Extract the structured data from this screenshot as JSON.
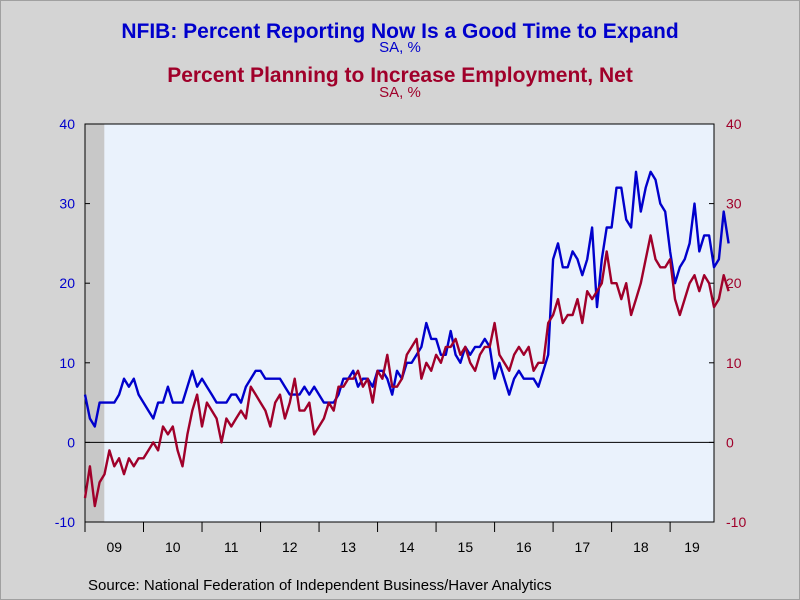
{
  "source": "Source:  National Federation of Independent Business/Haver Analytics",
  "colors": {
    "blue": "#0000cc",
    "red": "#a0002a",
    "plot_bg": "#eaf2fc",
    "recession": "#c8c8c8"
  },
  "chart_data": {
    "type": "line",
    "title": "NFIB: Percent Reporting Now Is a Good Time to Expand",
    "title_units": "SA, %",
    "subtitle": "Percent Planning to Increase Employment, Net",
    "subtitle_units": "SA, %",
    "x_range": [
      2009.0,
      2019.75
    ],
    "x_tick_labels": [
      "09",
      "10",
      "11",
      "12",
      "13",
      "14",
      "15",
      "16",
      "17",
      "18",
      "19"
    ],
    "y_left_range": [
      -10,
      40
    ],
    "y_right_range": [
      -10,
      40
    ],
    "y_left_ticks": [
      "40",
      "30",
      "20",
      "10",
      "0",
      "-10"
    ],
    "y_right_ticks": [
      "40",
      "30",
      "20",
      "10",
      "0",
      "-10"
    ],
    "recession_shading": [
      2009.0,
      2009.33
    ],
    "zero_line": true,
    "grid": false,
    "start": 2009.0,
    "step": 0.08333,
    "series": [
      {
        "name": "NFIB: Percent Reporting Now Is a Good Time to Expand",
        "axis": "left",
        "color": "#0000cc",
        "values": [
          6,
          3,
          2,
          5,
          5,
          5,
          5,
          6,
          8,
          7,
          8,
          6,
          5,
          4,
          3,
          5,
          5,
          7,
          5,
          5,
          5,
          7,
          9,
          7,
          8,
          7,
          6,
          5,
          5,
          5,
          6,
          6,
          5,
          7,
          8,
          9,
          9,
          8,
          8,
          8,
          8,
          7,
          6,
          6,
          6,
          7,
          6,
          7,
          6,
          5,
          5,
          5,
          6,
          8,
          8,
          9,
          7,
          8,
          8,
          7,
          9,
          9,
          8,
          6,
          9,
          8,
          10,
          10,
          11,
          12,
          15,
          13,
          13,
          11,
          11,
          14,
          11,
          10,
          12,
          11,
          12,
          12,
          13,
          12,
          8,
          10,
          8,
          6,
          8,
          9,
          8,
          8,
          8,
          7,
          9,
          11,
          23,
          25,
          22,
          22,
          24,
          23,
          21,
          23,
          27,
          17,
          23,
          27,
          27,
          32,
          32,
          28,
          27,
          34,
          29,
          32,
          34,
          33,
          30,
          29,
          24,
          20,
          22,
          23,
          25,
          30,
          24,
          26,
          26,
          22,
          23,
          29,
          25
        ]
      },
      {
        "name": "Percent Planning to Increase Employment, Net",
        "axis": "right",
        "color": "#a0002a",
        "values": [
          -7,
          -3,
          -8,
          -5,
          -4,
          -1,
          -3,
          -2,
          -4,
          -2,
          -3,
          -2,
          -2,
          -1,
          0,
          -1,
          2,
          1,
          2,
          -1,
          -3,
          1,
          4,
          6,
          2,
          5,
          4,
          3,
          0,
          3,
          2,
          3,
          4,
          3,
          7,
          6,
          5,
          4,
          2,
          5,
          6,
          3,
          5,
          8,
          4,
          4,
          5,
          1,
          2,
          3,
          5,
          4,
          7,
          7,
          8,
          8,
          9,
          7,
          8,
          5,
          9,
          8,
          11,
          7,
          7,
          8,
          11,
          12,
          13,
          8,
          10,
          9,
          11,
          10,
          12,
          12,
          13,
          11,
          12,
          10,
          9,
          11,
          12,
          12,
          15,
          11,
          10,
          9,
          11,
          12,
          11,
          12,
          9,
          10,
          10,
          15,
          16,
          18,
          15,
          16,
          16,
          18,
          15,
          19,
          18,
          19,
          20,
          24,
          20,
          20,
          18,
          20,
          16,
          18,
          20,
          23,
          26,
          23,
          22,
          22,
          23,
          18,
          16,
          18,
          20,
          21,
          19,
          21,
          20,
          17,
          18,
          21,
          19
        ]
      }
    ]
  }
}
